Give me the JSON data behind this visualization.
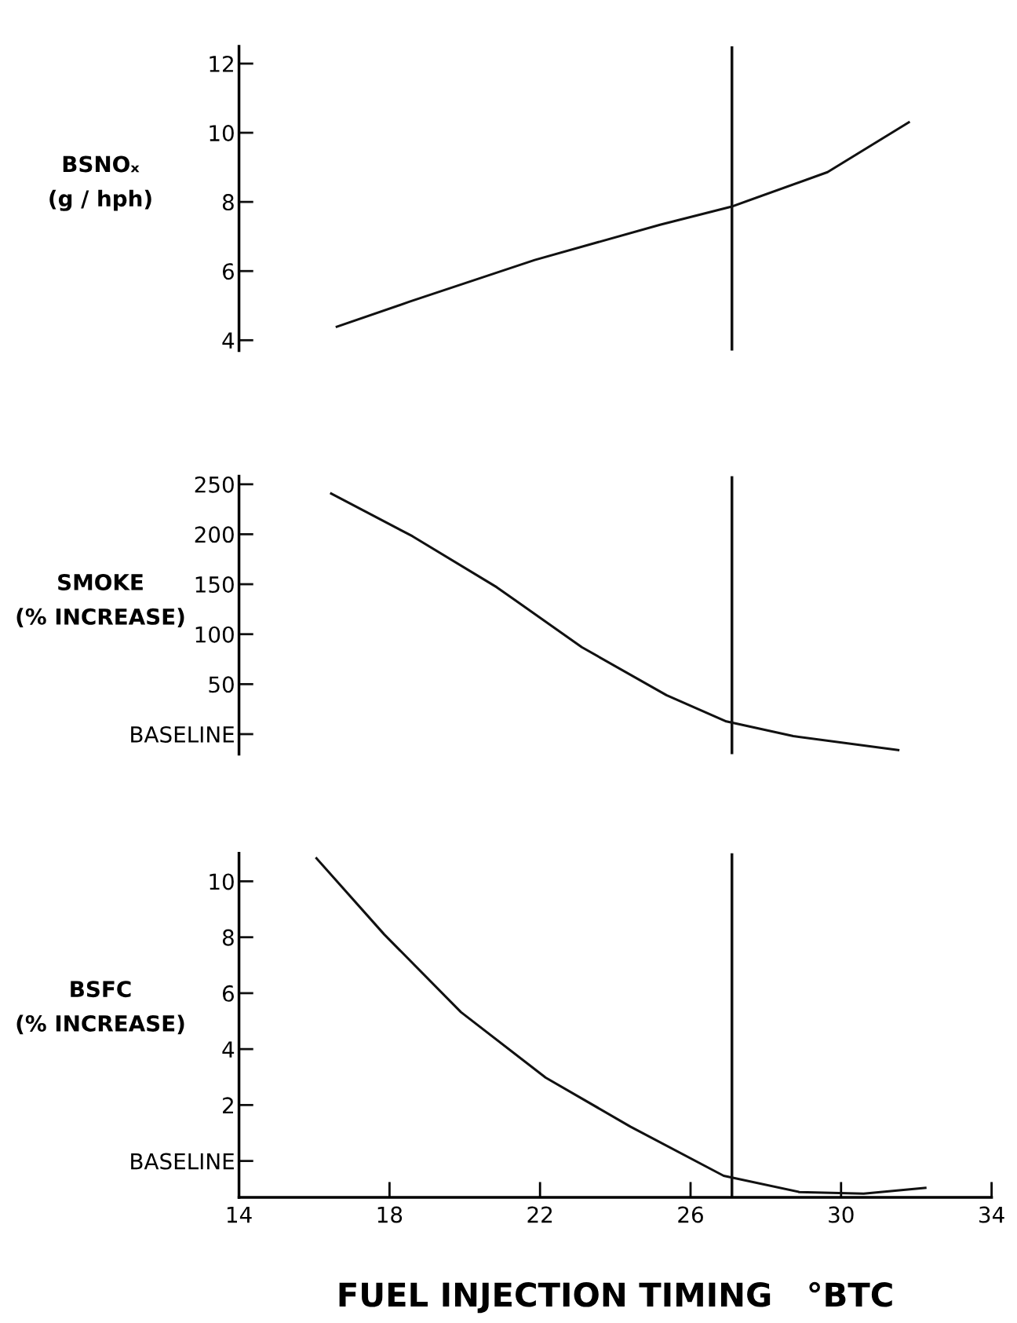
{
  "chart_data": [
    {
      "type": "line",
      "ylabel": "BSNOₓ\n(g / hph)",
      "x": [
        16.6,
        18.52,
        21.86,
        25.19,
        27.08,
        29.64,
        31.8
      ],
      "series": [
        {
          "color": "#111111",
          "values": [
            4.39,
            5.11,
            6.32,
            7.34,
            7.86,
            8.86,
            10.3
          ]
        }
      ],
      "xlim": [
        14,
        34
      ],
      "ylim": [
        3.7,
        12.5
      ],
      "yticks": [
        4,
        6,
        8,
        10,
        12
      ],
      "tick_labels": "y",
      "grid": false,
      "ref_lines": [
        {
          "axis": "x",
          "value": 27.1,
          "color": "#111111"
        }
      ]
    },
    {
      "type": "line",
      "ylabel": "SMOKE\n(% INCREASE)",
      "x": [
        16.45,
        18.61,
        20.85,
        23.11,
        25.36,
        26.95,
        28.73,
        31.52
      ],
      "series": [
        {
          "color": "#111111",
          "values": [
            240.7,
            198,
            147,
            87,
            39,
            12.7,
            -2,
            -16
          ]
        }
      ],
      "xlim": [
        14,
        34
      ],
      "ylim": [
        -20,
        258
      ],
      "yticks": [
        {
          "value": 0,
          "label": "BASELINE"
        },
        50,
        100,
        150,
        200,
        250
      ],
      "tick_labels": "y",
      "grid": false,
      "ref_lines": [
        {
          "axis": "x",
          "value": 27.1,
          "color": "#111111"
        }
      ]
    },
    {
      "type": "line",
      "ylabel": "BSFC\n(% INCREASE)",
      "xlabel": "FUEL INJECTION TIMING   °BTC",
      "x": [
        16.06,
        17.86,
        19.9,
        22.15,
        24.4,
        26.88,
        28.89,
        30.6,
        32.24
      ],
      "series": [
        {
          "color": "#111111",
          "values": [
            10.82,
            8.1,
            5.32,
            2.98,
            1.23,
            -0.53,
            -1.11,
            -1.17,
            -0.96
          ]
        }
      ],
      "xlim": [
        14,
        34
      ],
      "ylim": [
        -1.3,
        11
      ],
      "xticks": [
        14,
        18,
        22,
        26,
        30,
        34
      ],
      "yticks": [
        {
          "value": 0,
          "label": "BASELINE"
        },
        2,
        4,
        6,
        8,
        10
      ],
      "grid": false,
      "ref_lines": [
        {
          "axis": "x",
          "value": 27.1,
          "color": "#111111"
        }
      ]
    }
  ]
}
